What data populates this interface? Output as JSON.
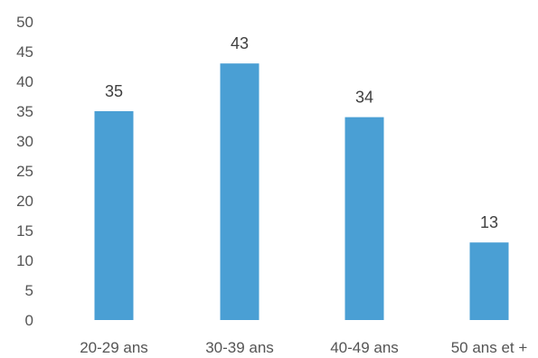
{
  "chart_data": {
    "type": "bar",
    "categories": [
      "20-29 ans",
      "30-39 ans",
      "40-49 ans",
      "50 ans et +"
    ],
    "values": [
      35,
      43,
      34,
      13
    ],
    "title": "",
    "xlabel": "",
    "ylabel": "",
    "ylim": [
      0,
      50
    ],
    "yticks": [
      0,
      5,
      10,
      15,
      20,
      25,
      30,
      35,
      40,
      45,
      50
    ],
    "grid": false,
    "legend": "none",
    "bar_color": "#4a9fd4",
    "data_labels": true
  }
}
